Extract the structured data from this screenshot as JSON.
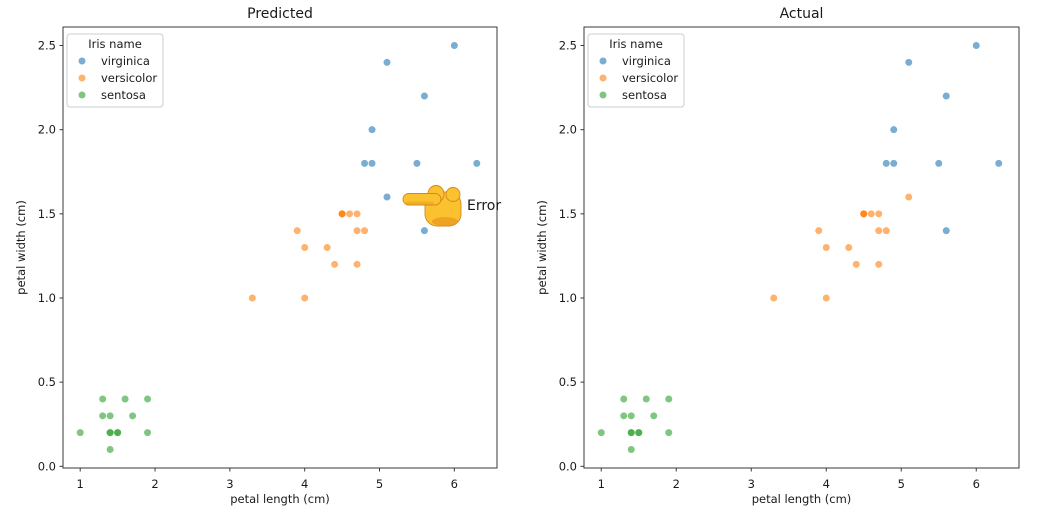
{
  "figure": {
    "background": "#ffffff"
  },
  "colors": {
    "spine": "#3a3a3a",
    "text": "#1a1a1a",
    "legend_border": "#cccccc",
    "legend_fill": "rgba(255,255,255,0.85)",
    "hand_fill": "#FBC12F",
    "hand_shade": "#E8961E",
    "hand_outline": "#D4881C"
  },
  "series_colors": {
    "virginica": "#1f77b4",
    "versicolor": "#ff7f0e",
    "sentosa": "#2ca02c"
  },
  "point_style": {
    "radius": 3.5,
    "opacity": 0.6
  },
  "plots_shared": {
    "xlabel": "petal length (cm)",
    "ylabel": "petal width (cm)",
    "x_tick_values": [
      1,
      2,
      3,
      4,
      5,
      6
    ],
    "x_tick_labels": [
      "1",
      "2",
      "3",
      "4",
      "5",
      "6"
    ],
    "y_tick_values": [
      0.0,
      0.5,
      1.0,
      1.5,
      2.0,
      2.5
    ],
    "y_tick_labels": [
      "0.0",
      "0.5",
      "1.0",
      "1.5",
      "2.0",
      "2.5"
    ],
    "legend": {
      "title": "Iris name",
      "entries": [
        {
          "label": "virginica",
          "series": "virginica"
        },
        {
          "label": "versicolor",
          "series": "versicolor"
        },
        {
          "label": "sentosa",
          "series": "sentosa"
        }
      ],
      "position": "upper-left"
    }
  },
  "chart_data": [
    {
      "type": "scatter",
      "title": "Predicted",
      "xlabel": "petal length (cm)",
      "ylabel": "petal width (cm)",
      "xlim": [
        0.77,
        6.57
      ],
      "ylim": [
        -0.01,
        2.61
      ],
      "grid": false,
      "series": [
        {
          "name": "virginica",
          "points": [
            [
              6.0,
              2.5
            ],
            [
              5.1,
              2.4
            ],
            [
              5.6,
              2.2
            ],
            [
              4.9,
              2.0
            ],
            [
              4.8,
              1.8
            ],
            [
              4.9,
              1.8
            ],
            [
              5.5,
              1.8
            ],
            [
              6.3,
              1.8
            ],
            [
              5.1,
              1.6
            ],
            [
              5.6,
              1.4
            ]
          ]
        },
        {
          "name": "versicolor",
          "points": [
            [
              4.5,
              1.5
            ],
            [
              4.5,
              1.5
            ],
            [
              4.5,
              1.5
            ],
            [
              4.6,
              1.5
            ],
            [
              4.7,
              1.5
            ],
            [
              3.9,
              1.4
            ],
            [
              4.7,
              1.4
            ],
            [
              4.8,
              1.4
            ],
            [
              4.0,
              1.3
            ],
            [
              4.3,
              1.3
            ],
            [
              4.4,
              1.2
            ],
            [
              4.7,
              1.2
            ],
            [
              3.3,
              1.0
            ],
            [
              4.0,
              1.0
            ]
          ]
        },
        {
          "name": "sentosa",
          "points": [
            [
              1.0,
              0.2
            ],
            [
              1.3,
              0.4
            ],
            [
              1.6,
              0.4
            ],
            [
              1.9,
              0.4
            ],
            [
              1.3,
              0.3
            ],
            [
              1.4,
              0.3
            ],
            [
              1.7,
              0.3
            ],
            [
              1.4,
              0.2
            ],
            [
              1.4,
              0.2
            ],
            [
              1.5,
              0.2
            ],
            [
              1.5,
              0.2
            ],
            [
              1.9,
              0.2
            ],
            [
              1.4,
              0.1
            ]
          ]
        }
      ],
      "annotation": {
        "icon": "backhand-index-pointing-left-emoji",
        "label": "Error",
        "target": [
          5.1,
          1.6
        ]
      }
    },
    {
      "type": "scatter",
      "title": "Actual",
      "xlabel": "petal length (cm)",
      "ylabel": "petal width (cm)",
      "xlim": [
        0.77,
        6.57
      ],
      "ylim": [
        -0.01,
        2.61
      ],
      "grid": false,
      "series": [
        {
          "name": "virginica",
          "points": [
            [
              6.0,
              2.5
            ],
            [
              5.1,
              2.4
            ],
            [
              5.6,
              2.2
            ],
            [
              4.9,
              2.0
            ],
            [
              4.8,
              1.8
            ],
            [
              4.9,
              1.8
            ],
            [
              5.5,
              1.8
            ],
            [
              6.3,
              1.8
            ],
            [
              5.6,
              1.4
            ]
          ]
        },
        {
          "name": "versicolor",
          "points": [
            [
              5.1,
              1.6
            ],
            [
              4.5,
              1.5
            ],
            [
              4.5,
              1.5
            ],
            [
              4.5,
              1.5
            ],
            [
              4.6,
              1.5
            ],
            [
              4.7,
              1.5
            ],
            [
              3.9,
              1.4
            ],
            [
              4.7,
              1.4
            ],
            [
              4.8,
              1.4
            ],
            [
              4.0,
              1.3
            ],
            [
              4.3,
              1.3
            ],
            [
              4.4,
              1.2
            ],
            [
              4.7,
              1.2
            ],
            [
              3.3,
              1.0
            ],
            [
              4.0,
              1.0
            ]
          ]
        },
        {
          "name": "sentosa",
          "points": [
            [
              1.0,
              0.2
            ],
            [
              1.3,
              0.4
            ],
            [
              1.6,
              0.4
            ],
            [
              1.9,
              0.4
            ],
            [
              1.3,
              0.3
            ],
            [
              1.4,
              0.3
            ],
            [
              1.7,
              0.3
            ],
            [
              1.4,
              0.2
            ],
            [
              1.4,
              0.2
            ],
            [
              1.5,
              0.2
            ],
            [
              1.5,
              0.2
            ],
            [
              1.9,
              0.2
            ],
            [
              1.4,
              0.1
            ]
          ]
        }
      ],
      "annotation": null
    }
  ]
}
